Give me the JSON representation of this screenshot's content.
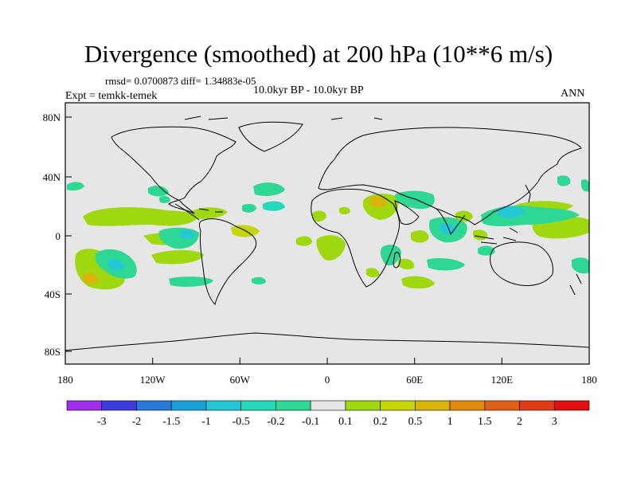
{
  "title": "Divergence (smoothed) at 200 hPa (10**6 m/s)",
  "stats": "rmsd= 0.0700873 diff= 1.34883e-05",
  "experiment": "Expt = temkk-temek",
  "case": "10.0kyr BP - 10.0kyr BP",
  "season": "ANN",
  "lat_ticks": [
    "80N",
    "40N",
    "0",
    "40S",
    "80S"
  ],
  "lon_ticks": [
    "180",
    "120W",
    "60W",
    "0",
    "60E",
    "120E",
    "180"
  ],
  "colorbar": {
    "colors": [
      "#9f2fe8",
      "#3c3cde",
      "#2a78d8",
      "#1aa1d8",
      "#25c7d4",
      "#24d8b8",
      "#2ed894",
      "#e6e6e6",
      "#9fd80f",
      "#c6d40a",
      "#d8b40a",
      "#e08a10",
      "#e06018",
      "#e03c1a",
      "#e01010"
    ],
    "labels": [
      "-3",
      "-2",
      "-1.5",
      "-1",
      "-0.5",
      "-0.2",
      "-0.1",
      "0.1",
      "0.2",
      "0.5",
      "1",
      "1.5",
      "2",
      "3"
    ]
  },
  "colors": {
    "map_bg": "#e6e6e6",
    "positive_light": "#9fd80f",
    "positive_mid": "#c6d40a",
    "positive_strong": "#d8b40a",
    "negative_light": "#2ed894",
    "negative_mid": "#24d8b8",
    "negative_strong": "#25c7d4"
  }
}
